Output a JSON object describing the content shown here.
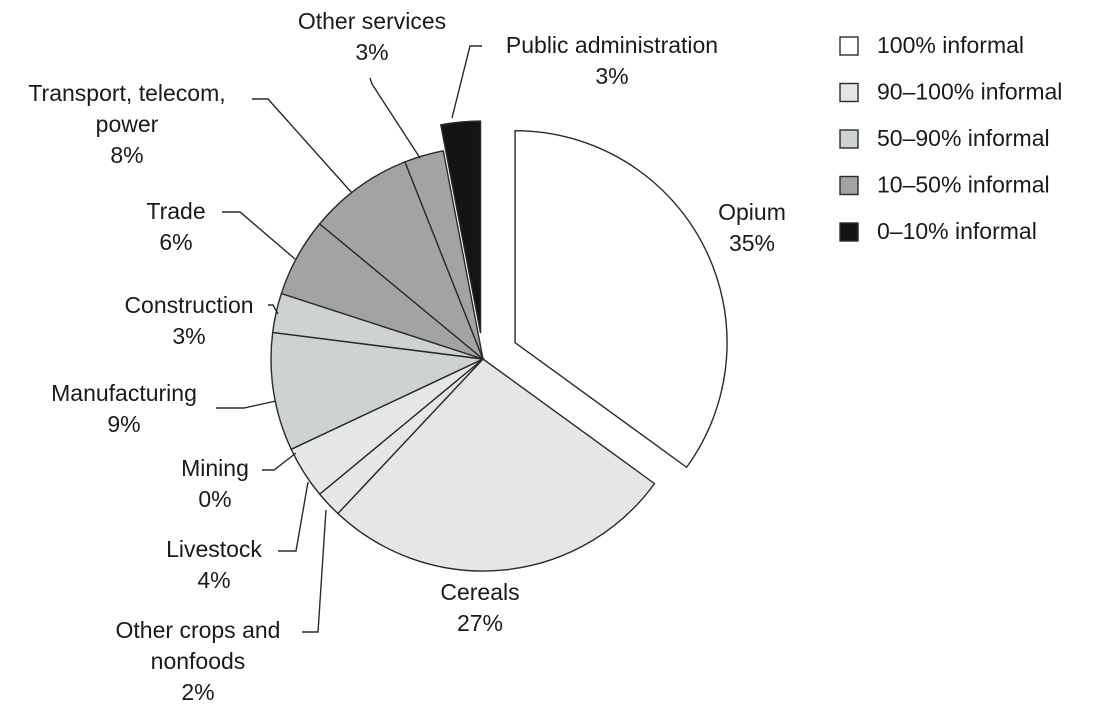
{
  "chart_data": {
    "type": "pie",
    "title": "",
    "series": [
      {
        "category": "Opium",
        "value": 35,
        "label": "35%",
        "informality": "100% informal"
      },
      {
        "category": "Cereals",
        "value": 27,
        "label": "27%",
        "informality": "90–100% informal"
      },
      {
        "category": "Other crops and nonfoods",
        "value": 2,
        "label": "2%",
        "informality": "90–100% informal"
      },
      {
        "category": "Livestock",
        "value": 4,
        "label": "4%",
        "informality": "90–100% informal"
      },
      {
        "category": "Mining",
        "value": 0,
        "label": "0%",
        "informality": "50–90% informal"
      },
      {
        "category": "Manufacturing",
        "value": 9,
        "label": "9%",
        "informality": "50–90% informal"
      },
      {
        "category": "Construction",
        "value": 3,
        "label": "3%",
        "informality": "50–90% informal"
      },
      {
        "category": "Trade",
        "value": 6,
        "label": "6%",
        "informality": "10–50% informal"
      },
      {
        "category": "Transport, telecom, power",
        "value": 8,
        "label": "8%",
        "informality": "10–50% informal"
      },
      {
        "category": "Other services",
        "value": 3,
        "label": "3%",
        "informality": "10–50% informal"
      },
      {
        "category": "Public administration",
        "value": 3,
        "label": "3%",
        "informality": "0–10% informal"
      }
    ],
    "exploded": [
      "Opium",
      "Public administration"
    ],
    "legend": {
      "placement": "top-right",
      "entries": [
        {
          "label": "100% informal",
          "color": "#ffffff"
        },
        {
          "label": "90–100% informal",
          "color": "#e6e6e6"
        },
        {
          "label": "50–90% informal",
          "color": "#cdd3d1"
        },
        {
          "label": "10–50% informal",
          "color": "#a3a3a6"
        },
        {
          "label": "0–10% informal",
          "color": "#141414"
        }
      ]
    }
  }
}
